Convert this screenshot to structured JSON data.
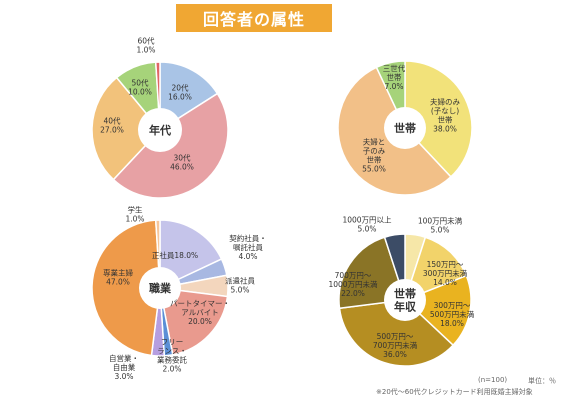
{
  "header": {
    "title": "回答者の属性"
  },
  "footer": {
    "sample": "(n=100)",
    "unit": "単位：％",
    "note": "※20代〜60代クレジットカード利用既婚主婦対象"
  },
  "chart_data": [
    {
      "type": "pie",
      "center_label": "年代",
      "categories": [
        "20代",
        "30代",
        "40代",
        "50代",
        "60代"
      ],
      "values": [
        16.0,
        46.0,
        27.0,
        10.0,
        1.0
      ],
      "labels": [
        [
          "20代",
          "16.0%"
        ],
        [
          "30代",
          "46.0%"
        ],
        [
          "40代",
          "27.0%"
        ],
        [
          "50代",
          "10.0%"
        ],
        [
          "60代",
          "1.0%"
        ]
      ],
      "colors": [
        "#a9c4e6",
        "#e7a1a4",
        "#f2c27b",
        "#a6d37a",
        "#e06666"
      ]
    },
    {
      "type": "pie",
      "center_label": "世帯",
      "categories": [
        "夫婦のみ(子なし)世帯",
        "夫婦と子のみ世帯",
        "三世代世帯"
      ],
      "values": [
        38.0,
        55.0,
        7.0
      ],
      "labels": [
        [
          "夫婦のみ",
          "(子なし)",
          "世帯",
          "38.0%"
        ],
        [
          "夫婦と",
          "子のみ",
          "世帯",
          "55.0%"
        ],
        [
          "三世代",
          "世帯",
          "7.0%"
        ]
      ],
      "colors": [
        "#f2e27a",
        "#f2c088",
        "#a6d37a"
      ]
    },
    {
      "type": "pie",
      "center_label": "職業",
      "categories": [
        "正社員",
        "契約社員・嘱託社員",
        "派遣社員",
        "パートタイマー・アルバイト",
        "フリーランス・業務委託",
        "自営業・自由業",
        "専業主婦",
        "学生"
      ],
      "values": [
        18.0,
        4.0,
        5.0,
        20.0,
        2.0,
        3.0,
        47.0,
        1.0
      ],
      "labels": [
        [
          "正社員18.0%"
        ],
        [
          "契約社員・",
          "嘱託社員",
          "4.0%"
        ],
        [
          "派遣社員",
          "5.0%"
        ],
        [
          "パートタイマー・",
          "アルバイト",
          "20.0%"
        ],
        [
          "フリー",
          "ランス・",
          "業務委託",
          "2.0%"
        ],
        [
          "自営業・",
          "自由業",
          "3.0%"
        ],
        [
          "専業主婦",
          "47.0%"
        ],
        [
          "学生",
          "1.0%"
        ]
      ],
      "colors": [
        "#c5c4ea",
        "#a8b8e2",
        "#f3d6bd",
        "#e99a8e",
        "#5b8fd6",
        "#b59ee0",
        "#ee9a4a",
        "#f6c69b"
      ]
    },
    {
      "type": "pie",
      "center_label": [
        "世帯",
        "年収"
      ],
      "categories": [
        "100万円未満",
        "150万円〜300万円未満",
        "300万円〜500万円未満",
        "500万円〜700万円未満",
        "700万円〜1000万円未満",
        "1000万円以上"
      ],
      "values": [
        5.0,
        14.0,
        18.0,
        36.0,
        22.0,
        5.0
      ],
      "labels": [
        [
          "100万円未満",
          "5.0%"
        ],
        [
          "150万円〜",
          "300万円未満",
          "14.0%"
        ],
        [
          "300万円〜",
          "500万円未満",
          "18.0%"
        ],
        [
          "500万円〜",
          "700万円未満",
          "36.0%"
        ],
        [
          "700万円〜",
          "1000万円未満",
          "22.0%"
        ],
        [
          "1000万円以上",
          "5.0%"
        ]
      ],
      "colors": [
        "#f6e7a8",
        "#f2d36a",
        "#e9b320",
        "#b58e22",
        "#8a7426",
        "#3c4c66"
      ]
    }
  ]
}
